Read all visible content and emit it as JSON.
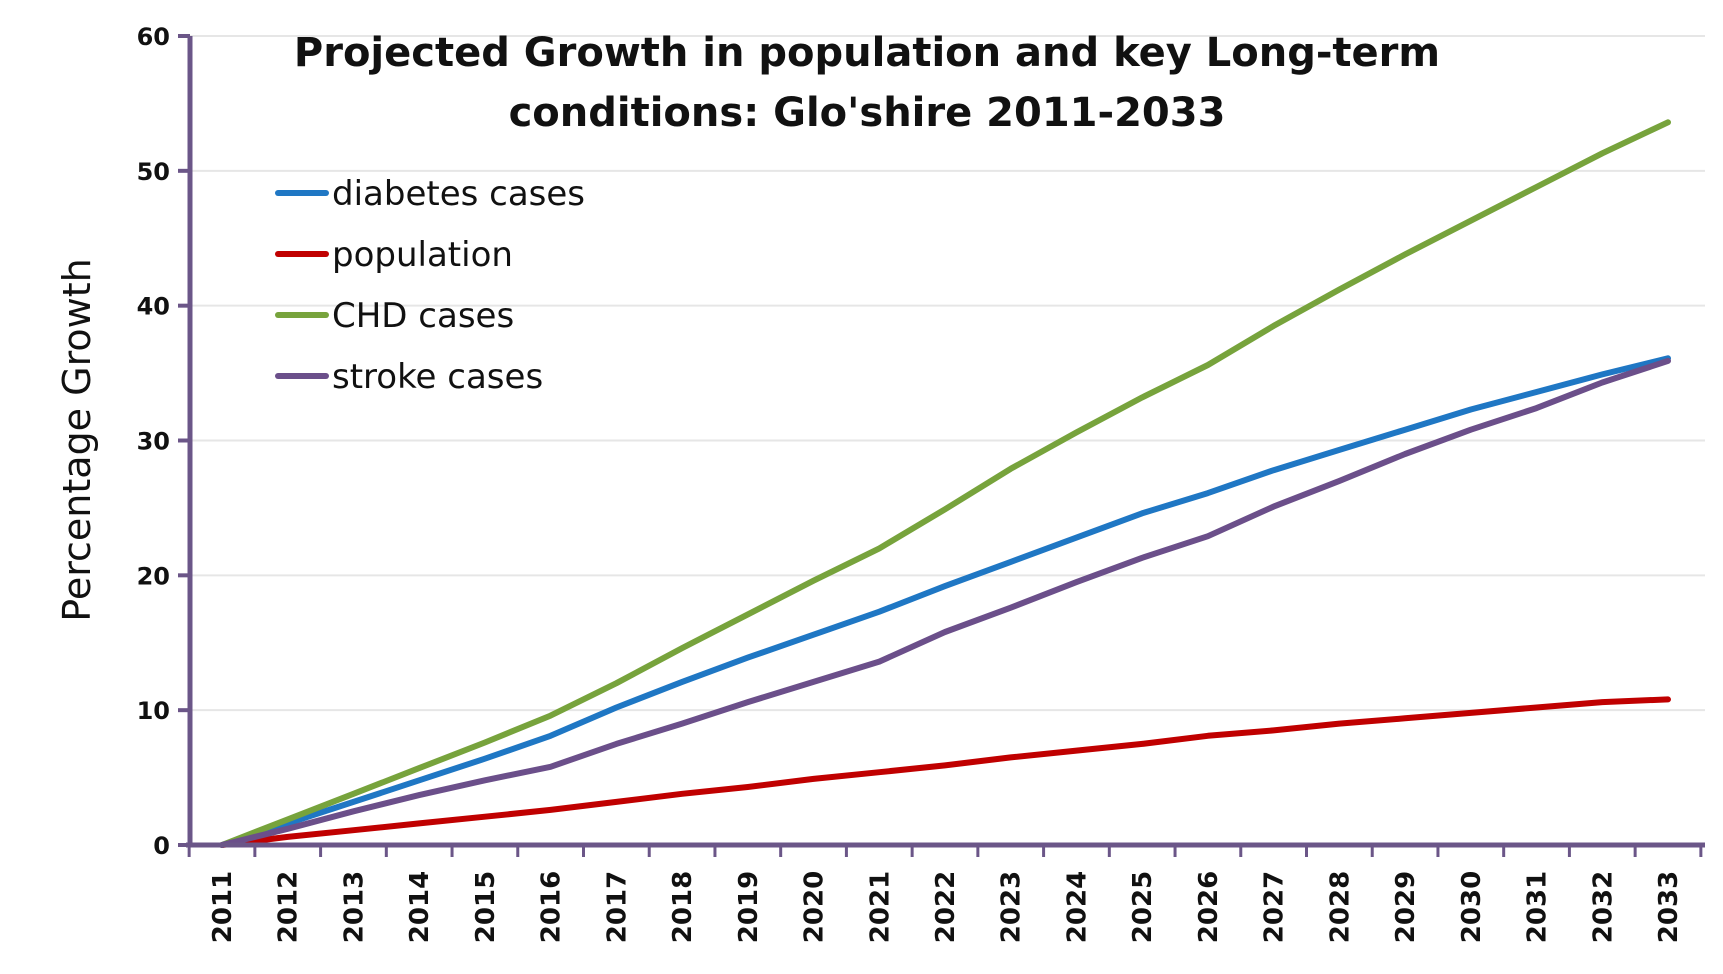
{
  "chart_data": {
    "type": "line",
    "title_lines": [
      "Projected Growth in population and key Long-term",
      "conditions: Glo'shire 2011-2033"
    ],
    "xlabel": "",
    "ylabel": "Percentage Growth",
    "ylim": [
      0,
      60
    ],
    "yticks": [
      0,
      10,
      20,
      30,
      40,
      50,
      60
    ],
    "grid": true,
    "legend_position": "top-left",
    "categories": [
      "2011",
      "2012",
      "2013",
      "2014",
      "2015",
      "2016",
      "2017",
      "2018",
      "2019",
      "2020",
      "2021",
      "2022",
      "2023",
      "2024",
      "2025",
      "2026",
      "2027",
      "2028",
      "2029",
      "2030",
      "2031",
      "2032",
      "2033"
    ],
    "series": [
      {
        "name": "diabetes cases",
        "color": "#1f77c4",
        "values": [
          0,
          1.6,
          3.2,
          4.8,
          6.4,
          8.1,
          10.2,
          12.1,
          13.9,
          15.6,
          17.3,
          19.2,
          21.0,
          22.8,
          24.6,
          26.1,
          27.8,
          29.3,
          30.8,
          32.3,
          33.6,
          34.9,
          36.1
        ]
      },
      {
        "name": "population",
        "color": "#c00000",
        "values": [
          0,
          0.6,
          1.1,
          1.6,
          2.1,
          2.6,
          3.2,
          3.8,
          4.3,
          4.9,
          5.4,
          5.9,
          6.5,
          7.0,
          7.5,
          8.1,
          8.5,
          9.0,
          9.4,
          9.8,
          10.2,
          10.6,
          10.8
        ]
      },
      {
        "name": "CHD cases",
        "color": "#77a33c",
        "values": [
          0,
          1.9,
          3.8,
          5.7,
          7.6,
          9.6,
          12.0,
          14.6,
          17.1,
          19.6,
          22.0,
          24.9,
          27.9,
          30.6,
          33.2,
          35.6,
          38.5,
          41.2,
          43.8,
          46.3,
          48.8,
          51.3,
          53.6
        ]
      },
      {
        "name": "stroke cases",
        "color": "#6b4f8a",
        "values": [
          0,
          1.2,
          2.5,
          3.7,
          4.8,
          5.8,
          7.5,
          9.0,
          10.6,
          12.1,
          13.6,
          15.8,
          17.6,
          19.5,
          21.3,
          22.9,
          25.1,
          27.0,
          29.0,
          30.8,
          32.4,
          34.3,
          35.9
        ]
      }
    ]
  },
  "colors": {
    "axis": "#6b5688",
    "grid": "#e6e6e6"
  }
}
